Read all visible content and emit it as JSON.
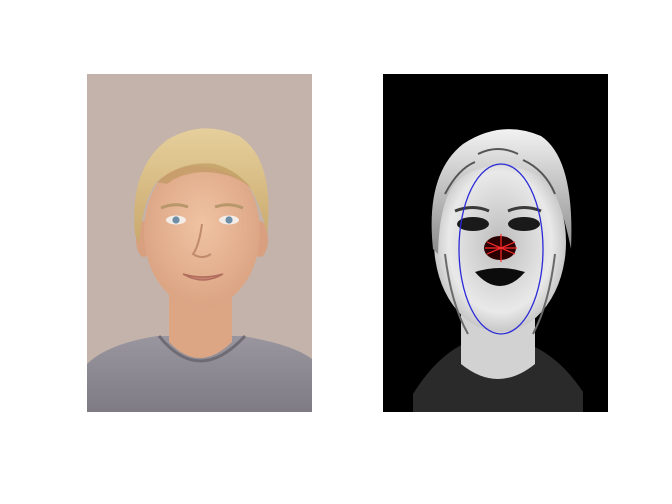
{
  "figure": {
    "panels": [
      {
        "name": "original-portrait",
        "kind": "color photograph of a face",
        "colors": {
          "background": "#c3b3aa",
          "skin": "#e7b593",
          "hair": "#d8bd86",
          "shirt": "#8d8990",
          "eyes": "#6d8ea6",
          "lips": "#c98574"
        }
      },
      {
        "name": "processed-face-map",
        "kind": "grayscale face texture on black background with fitted ellipse",
        "colors": {
          "background": "#000000",
          "face": "#e4e4e4",
          "ellipse": "#2a2ad8",
          "center_marker": "#ff2a2a",
          "center_blob": "#2a0000"
        }
      }
    ]
  }
}
